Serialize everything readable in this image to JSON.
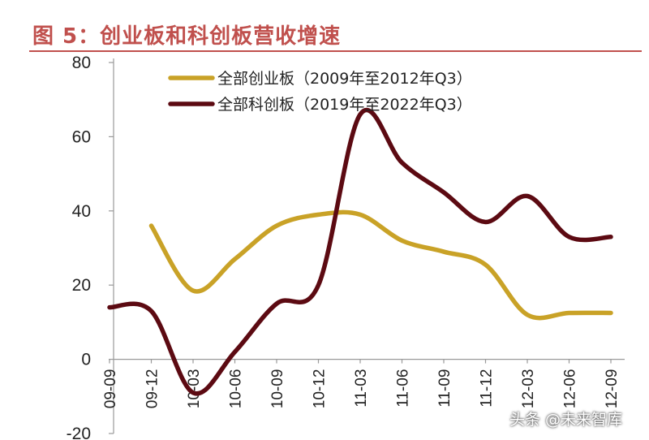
{
  "title": "图 5：创业板和科创板营收增速",
  "watermark": "头条 @未来智库",
  "colors": {
    "title": "#c0504d",
    "series_cyb": "#c9a227",
    "series_kcb": "#5c0a12"
  },
  "chart_data": {
    "type": "line",
    "categories": [
      "09-09",
      "09-12",
      "10-03",
      "10-06",
      "10-09",
      "10-12",
      "11-03",
      "11-06",
      "11-09",
      "11-12",
      "12-03",
      "12-06",
      "12-09"
    ],
    "ylim": [
      -20,
      80
    ],
    "yticks": [
      -20,
      0,
      20,
      40,
      60,
      80
    ],
    "grid": false,
    "legend_position": "top",
    "series": [
      {
        "name": "全部创业板（2009年至2012年Q3）",
        "color": "#c9a227",
        "values": [
          null,
          36,
          18.5,
          27,
          36,
          39,
          39,
          32,
          29,
          25.5,
          12,
          12.5,
          12.5
        ]
      },
      {
        "name": "全部科创板（2019年至2022年Q3）",
        "color": "#5c0a12",
        "values": [
          14,
          13,
          -9,
          2,
          15,
          20,
          66,
          53,
          45,
          37,
          44,
          33,
          33
        ]
      }
    ]
  }
}
